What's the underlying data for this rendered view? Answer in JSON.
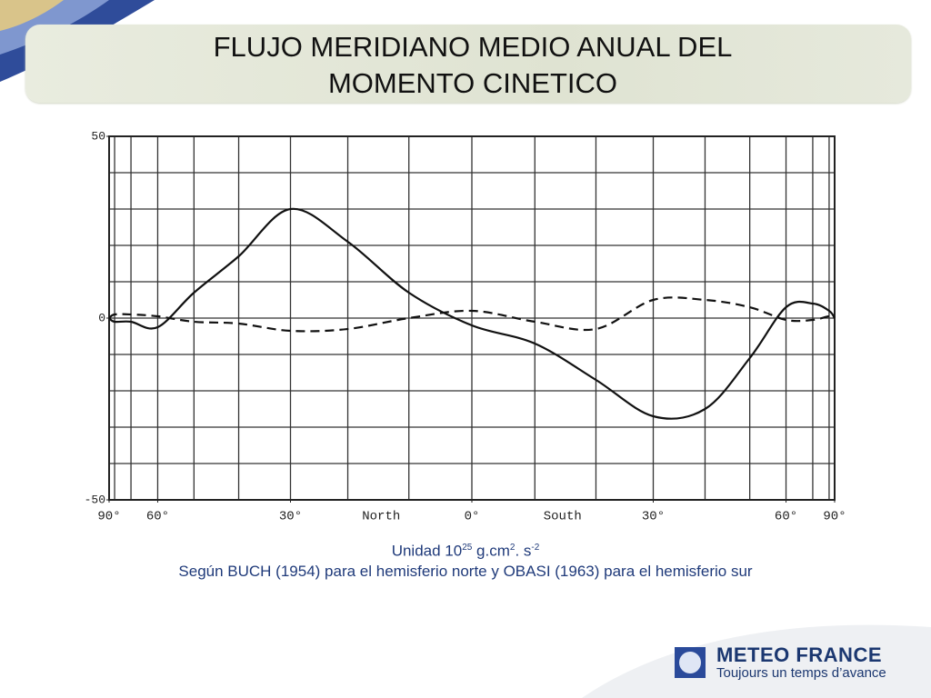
{
  "slide": {
    "title": "FLUJO MERIDIANO MEDIO ANUAL DEL MOMENTO CINETICO",
    "unit": [
      "Unidad 10",
      "25",
      " g.cm",
      "2",
      ". s",
      "-2"
    ],
    "source": "Según BUCH (1954) para el hemisferio norte y OBASI (1963) para el hemisferio sur",
    "logo": {
      "name": "METEO FRANCE",
      "tagline": "Toujours un temps d’avance"
    }
  },
  "chart_data": {
    "type": "line",
    "x": [
      90,
      80,
      70,
      60,
      50,
      40,
      30,
      20,
      10,
      0,
      -10,
      -20,
      -30,
      -40,
      -50,
      -60,
      -70,
      -80,
      -90
    ],
    "series": [
      {
        "color": "#111111",
        "dashed": false,
        "values": [
          0,
          -1,
          -1,
          -2.5,
          7,
          17,
          30,
          21,
          7,
          -2,
          -7,
          -17,
          -27,
          -25,
          -11,
          3,
          4,
          2,
          0
        ]
      },
      {
        "color": "#111111",
        "dashed": true,
        "values": [
          0,
          1,
          1,
          0.5,
          -1,
          -1.5,
          -3.5,
          -3,
          0,
          2,
          -1,
          -3,
          5,
          5,
          3,
          -0.5,
          -0.5,
          0.5,
          0
        ]
      }
    ],
    "xlim": [
      90,
      -90
    ],
    "xscale": "sine",
    "xticks": [
      {
        "value": 90,
        "label": "90°"
      },
      {
        "value": 60,
        "label": "60°"
      },
      {
        "value": 30,
        "label": "30°"
      },
      {
        "value": 0,
        "label": "0°"
      },
      {
        "value": -30,
        "label": "30°"
      },
      {
        "value": -60,
        "label": "60°"
      },
      {
        "value": -90,
        "label": "90°"
      }
    ],
    "annotations": [
      "North",
      "South"
    ],
    "ylim": [
      -50,
      50
    ],
    "yticks": [
      -50,
      0,
      50
    ],
    "grid": true,
    "xgrid": [
      80,
      70,
      60,
      50,
      40,
      30,
      20,
      10,
      0,
      -10,
      -20,
      -30,
      -40,
      -50,
      -60,
      -70,
      -80
    ],
    "ygrid": [
      -40,
      -30,
      -20,
      -10,
      0,
      10,
      20,
      30,
      40
    ]
  }
}
